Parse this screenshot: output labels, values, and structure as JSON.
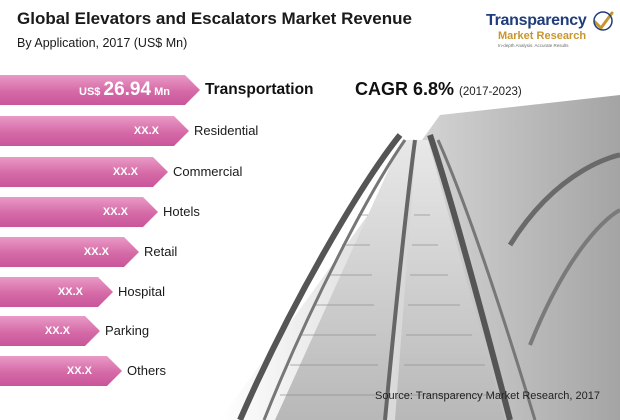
{
  "header": {
    "title": "Global Elevators and Escalators Market Revenue",
    "subtitle": "By Application, 2017 (US$ Mn)"
  },
  "logo": {
    "line1": "Transparency",
    "line2": "Market Research",
    "tagline": "In-depth Analysis. Accurate Results"
  },
  "cagr": {
    "text": "CAGR 6.8%",
    "period": "(2017-2023)"
  },
  "source": "Source: Transparency Market Research, 2017",
  "colors": {
    "bar": "#d56aa7",
    "bar_light": "#e99ac6",
    "logo_blue": "#1f3d7a",
    "logo_gold": "#c8962e"
  },
  "chart_data": {
    "type": "bar",
    "orientation": "horizontal",
    "title": "Global Elevators and Escalators Market Revenue",
    "subtitle": "By Application, 2017 (US$ Mn)",
    "categories": [
      "Transportation",
      "Residential",
      "Commercial",
      "Hotels",
      "Retail",
      "Hospital",
      "Parking",
      "Others"
    ],
    "value_labels": [
      "26.94",
      "XX.X",
      "XX.X",
      "XX.X",
      "XX.X",
      "XX.X",
      "XX.X",
      "XX.X"
    ],
    "value_prefix": "US$",
    "value_unit": "Mn",
    "values": [
      26.94,
      null,
      null,
      null,
      null,
      null,
      null,
      null
    ]
  }
}
